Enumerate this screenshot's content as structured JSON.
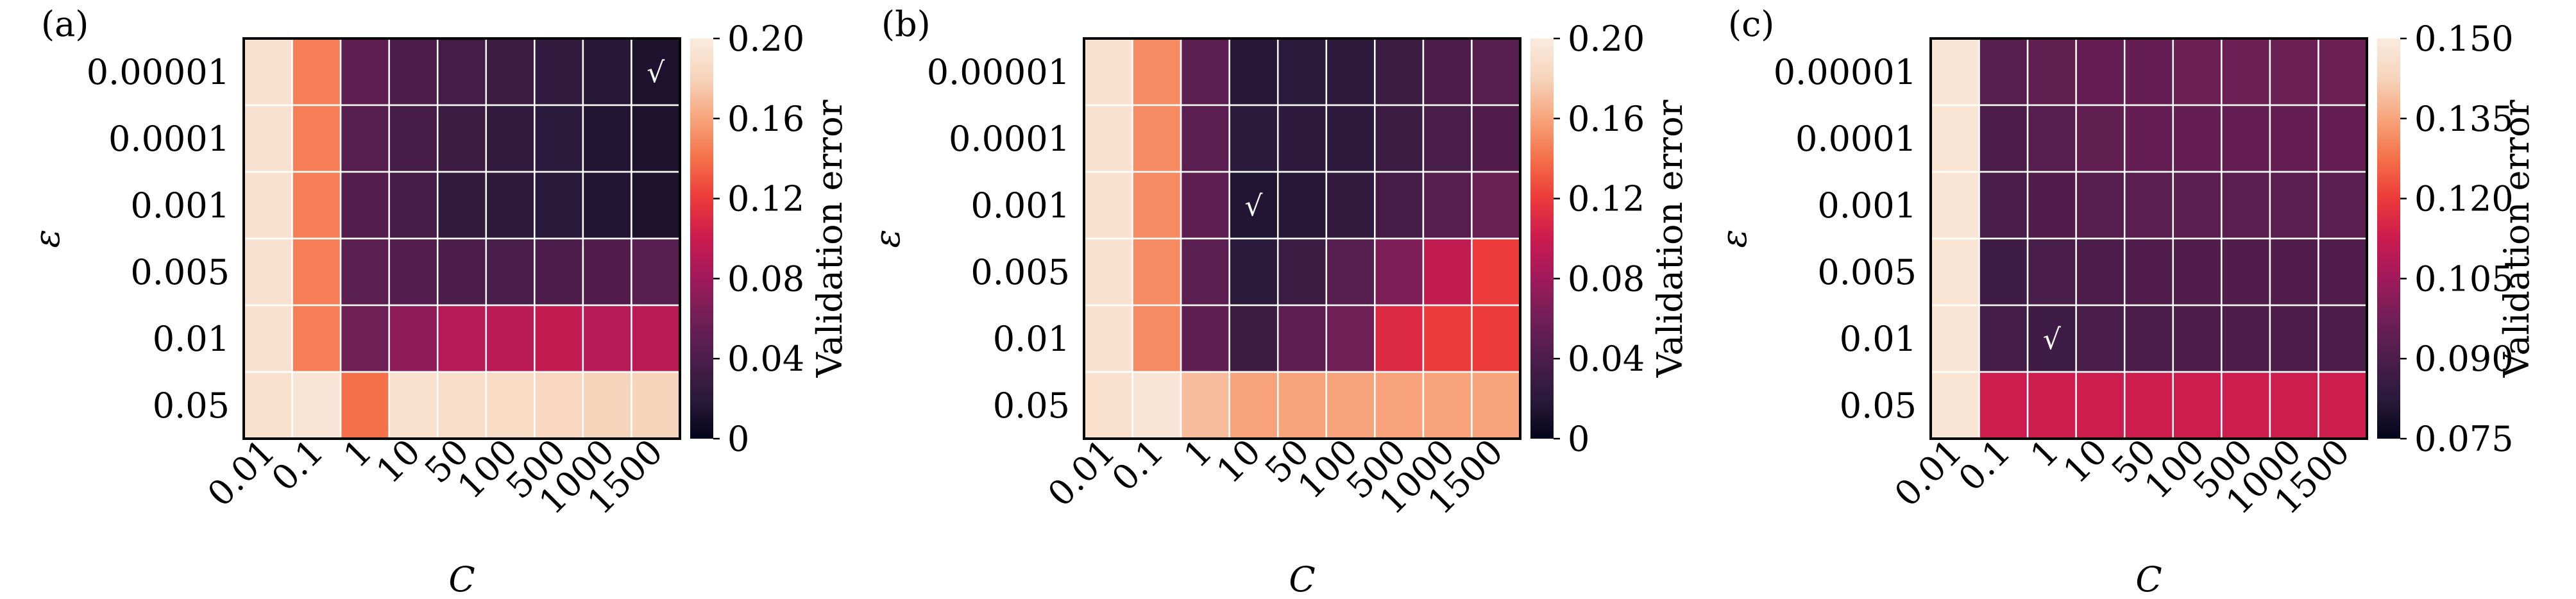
{
  "chart_data": [
    {
      "type": "heatmap",
      "panel_label": "(a)",
      "xlabel": "C",
      "ylabel": "ε",
      "x_categories": [
        "0.01",
        "0.1",
        "1",
        "10",
        "50",
        "100",
        "500",
        "1000",
        "1500"
      ],
      "y_categories": [
        "0.00001",
        "0.0001",
        "0.001",
        "0.005",
        "0.01",
        "0.05"
      ],
      "values": [
        [
          0.192,
          0.145,
          0.05,
          0.04,
          0.035,
          0.03,
          0.025,
          0.018,
          0.013
        ],
        [
          0.192,
          0.145,
          0.045,
          0.036,
          0.03,
          0.025,
          0.02,
          0.015,
          0.013
        ],
        [
          0.192,
          0.145,
          0.044,
          0.036,
          0.025,
          0.022,
          0.019,
          0.015,
          0.013
        ],
        [
          0.192,
          0.145,
          0.048,
          0.044,
          0.04,
          0.038,
          0.04,
          0.043,
          0.046
        ],
        [
          0.192,
          0.145,
          0.058,
          0.072,
          0.09,
          0.092,
          0.095,
          0.09,
          0.092
        ],
        [
          0.19,
          0.195,
          0.14,
          0.19,
          0.188,
          0.186,
          0.183,
          0.18,
          0.18
        ]
      ],
      "colorbar": {
        "label": "Validation error",
        "min": 0,
        "max": 0.2,
        "ticks": [
          "0",
          "0.04",
          "0.08",
          "0.12",
          "0.16",
          "0.20"
        ]
      },
      "best_marker": {
        "symbol": "√",
        "x": "1500",
        "y": "0.00001"
      }
    },
    {
      "type": "heatmap",
      "panel_label": "(b)",
      "xlabel": "C",
      "ylabel": "ε",
      "x_categories": [
        "0.01",
        "0.1",
        "1",
        "10",
        "50",
        "100",
        "500",
        "1000",
        "1500"
      ],
      "y_categories": [
        "0.00001",
        "0.0001",
        "0.001",
        "0.005",
        "0.01",
        "0.05"
      ],
      "values": [
        [
          0.192,
          0.15,
          0.048,
          0.018,
          0.02,
          0.022,
          0.03,
          0.04,
          0.045
        ],
        [
          0.192,
          0.15,
          0.048,
          0.02,
          0.022,
          0.022,
          0.03,
          0.038,
          0.043
        ],
        [
          0.192,
          0.15,
          0.05,
          0.015,
          0.018,
          0.025,
          0.035,
          0.045,
          0.055
        ],
        [
          0.192,
          0.15,
          0.048,
          0.02,
          0.03,
          0.045,
          0.065,
          0.095,
          0.12
        ],
        [
          0.192,
          0.15,
          0.05,
          0.03,
          0.05,
          0.06,
          0.11,
          0.12,
          0.12
        ],
        [
          0.19,
          0.195,
          0.17,
          0.16,
          0.16,
          0.16,
          0.16,
          0.16,
          0.16
        ]
      ],
      "colorbar": {
        "label": "Validation error",
        "min": 0,
        "max": 0.2,
        "ticks": [
          "0",
          "0.04",
          "0.08",
          "0.12",
          "0.16",
          "0.20"
        ]
      },
      "best_marker": {
        "symbol": "√",
        "x": "10",
        "y": "0.001"
      }
    },
    {
      "type": "heatmap",
      "panel_label": "(c)",
      "xlabel": "C",
      "ylabel": "ε",
      "x_categories": [
        "0.01",
        "0.1",
        "1",
        "10",
        "50",
        "100",
        "500",
        "1000",
        "1500"
      ],
      "y_categories": [
        "0.00001",
        "0.0001",
        "0.001",
        "0.005",
        "0.01",
        "0.05"
      ],
      "values": [
        [
          0.148,
          0.092,
          0.094,
          0.095,
          0.095,
          0.096,
          0.096,
          0.096,
          0.096
        ],
        [
          0.148,
          0.09,
          0.092,
          0.094,
          0.095,
          0.095,
          0.095,
          0.095,
          0.095
        ],
        [
          0.148,
          0.089,
          0.091,
          0.092,
          0.093,
          0.093,
          0.093,
          0.093,
          0.093
        ],
        [
          0.148,
          0.087,
          0.089,
          0.09,
          0.091,
          0.091,
          0.091,
          0.091,
          0.091
        ],
        [
          0.148,
          0.088,
          0.087,
          0.089,
          0.089,
          0.09,
          0.09,
          0.09,
          0.09
        ],
        [
          0.148,
          0.113,
          0.113,
          0.113,
          0.113,
          0.113,
          0.113,
          0.113,
          0.113
        ]
      ],
      "colorbar": {
        "label": "Validation error",
        "min": 0.075,
        "max": 0.15,
        "ticks": [
          "0.075",
          "0.090",
          "0.105",
          "0.120",
          "0.135",
          "0.150"
        ]
      },
      "best_marker": {
        "symbol": "√",
        "x": "1",
        "y": "0.01"
      }
    }
  ],
  "colors": {
    "colormap_rocket": [
      "#03051a",
      "#2b1a3b",
      "#4c1d4b",
      "#711f57",
      "#a11a5b",
      "#cb1b4f",
      "#ed3a3a",
      "#f47149",
      "#f7a47c",
      "#f6d4bb",
      "#faebdd"
    ],
    "grid": "#ffffff",
    "frame": "#000000",
    "text": "#000000"
  }
}
